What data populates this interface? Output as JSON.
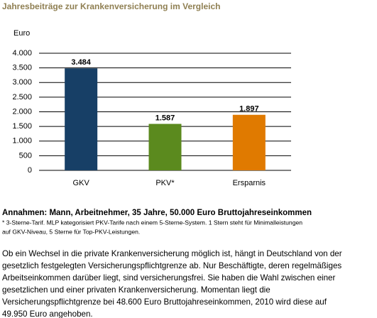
{
  "chart_data": {
    "type": "bar",
    "title": "Jahresbeiträge zur Krankenversicherung im Vergleich",
    "y_label": "Euro",
    "categories": [
      "GKV",
      "PKV*",
      "Ersparnis"
    ],
    "values": [
      3484,
      1587,
      1897
    ],
    "value_labels": [
      "3.484",
      "1.587",
      "1.897"
    ],
    "colors": [
      "#173f66",
      "#5b8a1e",
      "#e07a00"
    ],
    "ylim": [
      0,
      4000
    ],
    "yticks": [
      0,
      {
        "value": 500,
        "label": "500"
      },
      {
        "value": 1000,
        "label": "1.000"
      },
      {
        "value": 1500,
        "label": "1.500"
      },
      {
        "value": 2000,
        "label": "2.000"
      },
      {
        "value": 2500,
        "label": "2.500"
      },
      {
        "value": 3000,
        "label": "3.000"
      },
      {
        "value": 3500,
        "label": "3.500"
      },
      {
        "value": 4000,
        "label": "4.000"
      }
    ],
    "grid": true
  },
  "notes": {
    "assumptions": "Annahmen: Mann, Arbeitnehmer, 35 Jahre, 50.000 Euro Bruttojahreseinkommen",
    "footnote": [
      "* 3-Sterne-Tarif. MLP kategorisiert PKV-Tarife nach einem 5-Sterne-System. 1 Stern steht für Minimalleistungen",
      "auf GKV-Niveau, 5 Sterne für Top-PKV-Leistungen."
    ],
    "paragraph": [
      "Ob ein Wechsel in die private Krankenversicherung möglich ist, hängt in Deutschland von der",
      "gesetzlich festgelegten Versicherungspflichtgrenze ab. Nur Beschäftigte, deren regelmäßiges",
      "Arbeitseinkommen darüber liegt, sind versicherungsfrei. Sie haben die Wahl zwischen einer",
      "gesetzlichen und einer privaten Krankenversicherung. Momentan liegt die",
      "Versicherungspflichtgrenze bei 48.600 Euro Bruttojahreseinkommen, 2010 wird diese auf",
      "49.950 Euro angehoben."
    ]
  }
}
